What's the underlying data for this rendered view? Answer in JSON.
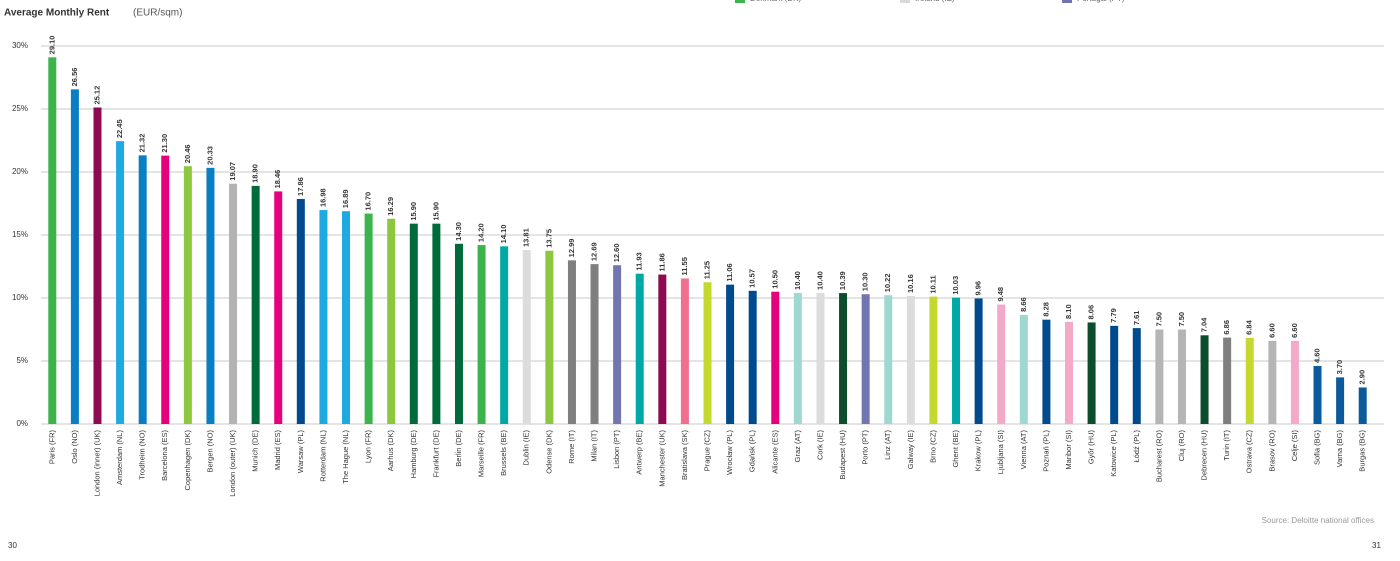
{
  "chart_data": {
    "type": "bar",
    "title": "Average Monthly Rent",
    "subtitle": "(EUR/sqm)",
    "legend": [
      {
        "name": "Denmark (DK)",
        "color": "#3cb44b"
      },
      {
        "name": "Ireland (IE)",
        "color": "#d9d9d9"
      },
      {
        "name": "Portugal (PT)",
        "color": "#7276b0"
      }
    ],
    "categories": [
      "Paris (FR)",
      "Oslo (NO)",
      "London (inner) (UK)",
      "Amsterdam (NL)",
      "Trodheim (NO)",
      "Barcelona (ES)",
      "Copenhagen (DK)",
      "Bergen (NO)",
      "London (outer) (UK)",
      "Munich (DE)",
      "Madrid (ES)",
      "Warsaw (PL)",
      "Rotterdam (NL)",
      "The Hague (NL)",
      "Lyon (FR)",
      "Aarhus (DK)",
      "Hamburg (DE)",
      "Frankfurt (DE)",
      "Berlin (DE)",
      "Marseille (FR)",
      "Brussels (BE)",
      "Dublin (IE)",
      "Odense (DK)",
      "Rome (IT)",
      "Milan (IT)",
      "Lisbon (PT)",
      "Antwerp (BE)",
      "Manchester (UK)",
      "Bratislava (SK)",
      "Prague (CZ)",
      "Wrocław (PL)",
      "Gdańsk (PL)",
      "Alicante (ES)",
      "Graz (AT)",
      "Cork (IE)",
      "Budapest (HU)",
      "Porto (PT)",
      "Linz (AT)",
      "Galway (IE)",
      "Brno (CZ)",
      "Ghent (BE)",
      "Krakow (PL)",
      "Ljubljana (SI)",
      "Vienna (AT)",
      "Poznań (PL)",
      "Maribor (SI)",
      "Győr (HU)",
      "Katowice (PL)",
      "Łódź (PL)",
      "Bucharest (RO)",
      "Cluj (RO)",
      "Debrecen (HU)",
      "Turin (IT)",
      "Ostrava (CZ)",
      "Brasov (RO)",
      "Celje (SI)",
      "Sofia (BG)",
      "Varna (BG)",
      "Burgas (BG)"
    ],
    "values": [
      29.1,
      26.56,
      25.12,
      22.45,
      21.32,
      21.3,
      20.46,
      20.33,
      19.07,
      18.9,
      18.46,
      17.86,
      16.98,
      16.89,
      16.7,
      16.29,
      15.9,
      15.9,
      14.3,
      14.2,
      14.1,
      13.81,
      13.75,
      12.99,
      12.69,
      12.6,
      11.93,
      11.86,
      11.55,
      11.25,
      11.06,
      10.57,
      10.5,
      10.4,
      10.4,
      10.39,
      10.3,
      10.22,
      10.16,
      10.11,
      10.03,
      9.96,
      9.48,
      8.66,
      8.28,
      8.1,
      8.06,
      7.79,
      7.61,
      7.5,
      7.5,
      7.04,
      6.86,
      6.84,
      6.6,
      6.6,
      4.6,
      3.7,
      2.9
    ],
    "value_labels": [
      "29.10",
      "26.56",
      "25.12",
      "22.45",
      "21.32",
      "21.30",
      "20.46",
      "20.33",
      "19.07",
      "18.90",
      "18.46",
      "17.86",
      "16.98",
      "16.89",
      "16.70",
      "16.29",
      "15.90",
      "15.90",
      "14.30",
      "14.20",
      "14.10",
      "13.81",
      "13.75",
      "12.99",
      "12.69",
      "12.60",
      "11.93",
      "11.86",
      "11.55",
      "11.25",
      "11.06",
      "10.57",
      "10.50",
      "10.40",
      "10.40",
      "10.39",
      "10.30",
      "10.22",
      "10.16",
      "10.11",
      "10.03",
      "9.96",
      "9.48",
      "8.66",
      "8.28",
      "8.10",
      "8.06",
      "7.79",
      "7.61",
      "7.50",
      "7.50",
      "7.04",
      "6.86",
      "6.84",
      "6.60",
      "6.60",
      "4.60",
      "3.70",
      "2.90"
    ],
    "colors": [
      "#3cb44b",
      "#0a7ec2",
      "#8c0b52",
      "#1fa9e1",
      "#0a7ec2",
      "#e6007e",
      "#8dc63f",
      "#0a7ec2",
      "#b3b3b3",
      "#006b3a",
      "#e6007e",
      "#004b8d",
      "#1fa9e1",
      "#1fa9e1",
      "#3cb44b",
      "#8dc63f",
      "#006b3a",
      "#006b3a",
      "#006b3a",
      "#3cb44b",
      "#00a9a5",
      "#dcdcdc",
      "#8dc63f",
      "#7f7f7f",
      "#7f7f7f",
      "#7276b0",
      "#00a9a5",
      "#8c0b52",
      "#ef6f8e",
      "#c5d82f",
      "#004b8d",
      "#004b8d",
      "#e6007e",
      "#9fd8d0",
      "#dcdcdc",
      "#0b4d2c",
      "#7276b0",
      "#9fd8d0",
      "#dcdcdc",
      "#c5d82f",
      "#00a9a5",
      "#004b8d",
      "#f4a9c8",
      "#9fd8d0",
      "#004b8d",
      "#f4a9c8",
      "#0b4d2c",
      "#004b8d",
      "#004b8d",
      "#b5b5b5",
      "#b5b5b5",
      "#0b4d2c",
      "#7f7f7f",
      "#c5d82f",
      "#b5b5b5",
      "#f4a9c8",
      "#0a5a9c",
      "#0a5a9c",
      "#0a5a9c"
    ],
    "ylim": [
      0,
      30
    ],
    "yticks": [
      {
        "value": 0,
        "label": "0%"
      },
      {
        "value": 5,
        "label": "5%"
      },
      {
        "value": 10,
        "label": "10%"
      },
      {
        "value": 15,
        "label": "15%"
      },
      {
        "value": 20,
        "label": "20%"
      },
      {
        "value": 25,
        "label": "25%"
      },
      {
        "value": 30,
        "label": "30%"
      }
    ],
    "grid": true,
    "source": "Source: Deloitte national offices",
    "page_left": "30",
    "page_right": "31"
  }
}
